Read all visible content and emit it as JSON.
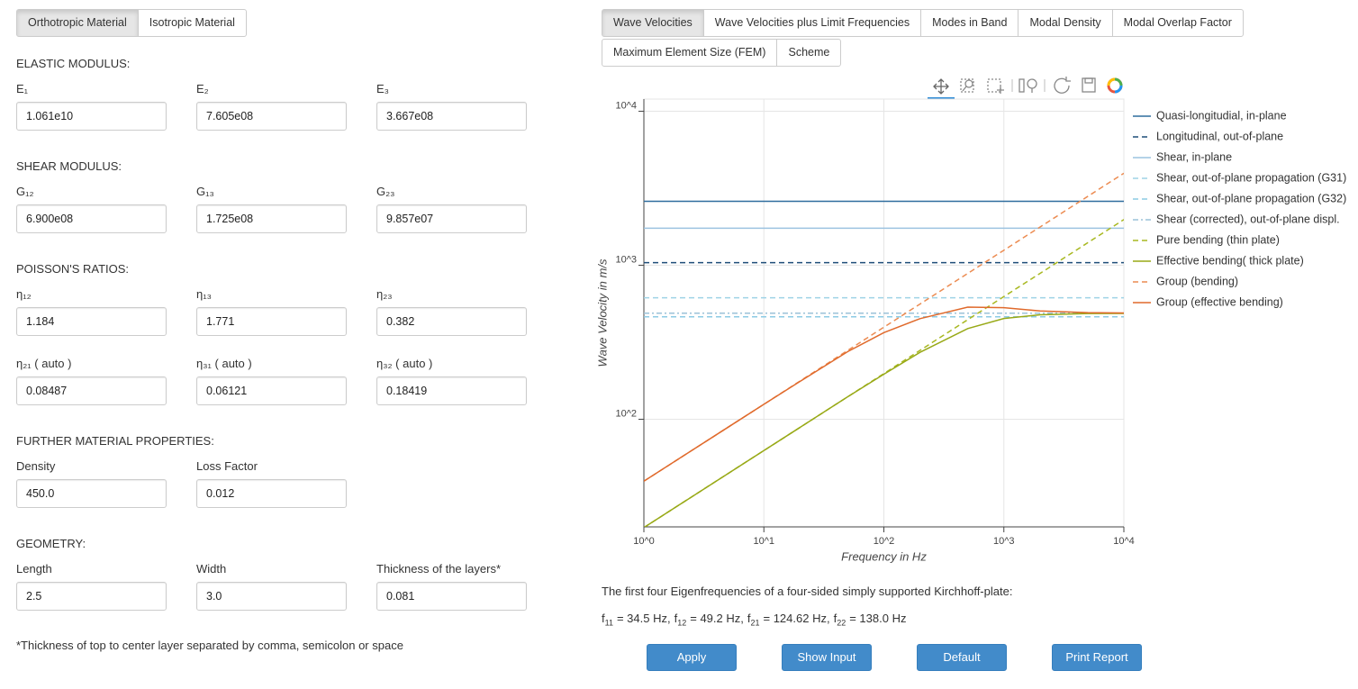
{
  "left_tabs": [
    "Orthotropic Material",
    "Isotropic Material"
  ],
  "sections": [
    {
      "title": "ELASTIC MODULUS:",
      "rows": [
        [
          {
            "label": "E₁",
            "value": "1.061e10"
          },
          {
            "label": "E₂",
            "value": "7.605e08"
          },
          {
            "label": "E₃",
            "value": "3.667e08"
          }
        ]
      ]
    },
    {
      "title": "SHEAR MODULUS:",
      "rows": [
        [
          {
            "label": "G₁₂",
            "value": "6.900e08"
          },
          {
            "label": "G₁₃",
            "value": "1.725e08"
          },
          {
            "label": "G₂₃",
            "value": "9.857e07"
          }
        ]
      ]
    },
    {
      "title": "POISSON'S RATIOS:",
      "rows": [
        [
          {
            "label": "η₁₂",
            "value": "1.184"
          },
          {
            "label": "η₁₃",
            "value": "1.771"
          },
          {
            "label": "η₂₃",
            "value": "0.382"
          }
        ],
        [
          {
            "label": "η₂₁ ( auto )",
            "value": "0.08487"
          },
          {
            "label": "η₃₁ ( auto )",
            "value": "0.06121"
          },
          {
            "label": "η₃₂ ( auto )",
            "value": "0.18419"
          }
        ]
      ]
    },
    {
      "title": "FURTHER MATERIAL PROPERTIES:",
      "rows": [
        [
          {
            "label": "Density",
            "value": "450.0"
          },
          {
            "label": "Loss Factor",
            "value": "0.012"
          }
        ]
      ]
    },
    {
      "title": "GEOMETRY:",
      "rows": [
        [
          {
            "label": "Length",
            "value": "2.5"
          },
          {
            "label": "Width",
            "value": "3.0"
          },
          {
            "label": "Thickness of the layers*",
            "value": "0.081"
          }
        ]
      ]
    }
  ],
  "footnote": "*Thickness of top to center layer separated by comma, semicolon or space",
  "right_tabs": [
    [
      "Wave Velocities",
      "Wave Velocities plus Limit Frequencies",
      "Modes in Band",
      "Modal Density",
      "Modal Overlap Factor"
    ],
    [
      "Maximum Element Size (FEM)",
      "Scheme"
    ]
  ],
  "chart_data": {
    "type": "line",
    "xlabel": "Frequency in Hz",
    "ylabel": "Wave Velocity in m/s",
    "log_x": true,
    "log_y": true,
    "grid": true,
    "legend": "right",
    "x": [
      1,
      2,
      5,
      10,
      20,
      50,
      100,
      200,
      500,
      1000,
      2000,
      5000,
      10000
    ],
    "xlim": [
      1,
      10000
    ],
    "ylim": [
      20,
      12000
    ],
    "xticks": [
      {
        "value": 1,
        "label": "10^0"
      },
      {
        "value": 10,
        "label": "10^1"
      },
      {
        "value": 100,
        "label": "10^2"
      },
      {
        "value": 1000,
        "label": "10^3"
      },
      {
        "value": 10000,
        "label": "10^4"
      }
    ],
    "yticks": [
      {
        "value": 100,
        "label": "10^2"
      },
      {
        "value": 1000,
        "label": "10^3"
      },
      {
        "value": 10000,
        "label": "10^4"
      }
    ],
    "series": [
      {
        "name": "Quasi-longitudial, in-plane",
        "color": "#2f6d9e",
        "dash": "solid",
        "values": [
          2600,
          2600,
          2600,
          2600,
          2600,
          2600,
          2600,
          2600,
          2600,
          2600,
          2600,
          2600,
          2600
        ]
      },
      {
        "name": "Longitudinal, out-of-plane",
        "color": "#1f4e79",
        "dash": "dashed",
        "values": [
          1040,
          1040,
          1040,
          1040,
          1040,
          1040,
          1040,
          1040,
          1040,
          1040,
          1040,
          1040,
          1040
        ]
      },
      {
        "name": "Shear, in-plane",
        "color": "#9cc3e0",
        "dash": "solid",
        "values": [
          1740,
          1740,
          1740,
          1740,
          1740,
          1740,
          1740,
          1740,
          1740,
          1740,
          1740,
          1740,
          1740
        ]
      },
      {
        "name": "Shear, out-of-plane propagation (G31)",
        "color": "#9fd3e6",
        "dash": "dashed",
        "values": [
          615,
          615,
          615,
          615,
          615,
          615,
          615,
          615,
          615,
          615,
          615,
          615,
          615
        ]
      },
      {
        "name": "Shear, out-of-plane propagation (G32)",
        "color": "#8ccbe4",
        "dash": "dashed",
        "values": [
          463,
          463,
          463,
          463,
          463,
          463,
          463,
          463,
          463,
          463,
          463,
          463,
          463
        ]
      },
      {
        "name": "Shear (corrected), out-of-plane displ.",
        "color": "#9bc2d8",
        "dash": "dashdot",
        "values": [
          488,
          488,
          488,
          488,
          488,
          488,
          488,
          488,
          488,
          488,
          488,
          488,
          488
        ]
      },
      {
        "name": "Pure bending (thin plate)",
        "color": "#a8b820",
        "dash": "dashed",
        "values": [
          19.8,
          28,
          44.3,
          62.6,
          88.5,
          140,
          198,
          280,
          443,
          626,
          885,
          1400,
          1980
        ]
      },
      {
        "name": "Effective bending( thick plate)",
        "color": "#98a917",
        "dash": "solid",
        "values": [
          19.8,
          28,
          44.3,
          62.6,
          88.5,
          140,
          196,
          272,
          388,
          451,
          477,
          486,
          487
        ]
      },
      {
        "name": "Group (bending)",
        "color": "#ec8c52",
        "dash": "dashed",
        "values": [
          39.6,
          56,
          88.5,
          125,
          177,
          280,
          396,
          560,
          885,
          1252,
          1771,
          2800,
          3960
        ]
      },
      {
        "name": "Group (effective bending)",
        "color": "#e06a2c",
        "dash": "solid",
        "values": [
          39.6,
          56,
          88.5,
          125,
          176,
          275,
          365,
          450,
          535,
          530,
          505,
          492,
          490
        ]
      }
    ]
  },
  "eigen_intro": "The first four Eigenfrequencies of a four-sided simply supported Kirchhoff-plate:",
  "eigenfrequencies": [
    {
      "symbol": "f",
      "index": "11",
      "text": "= 34.5 Hz,"
    },
    {
      "symbol": "f",
      "index": "12",
      "text": "= 49.2 Hz,"
    },
    {
      "symbol": "f",
      "index": "21",
      "text": "= 124.62 Hz,"
    },
    {
      "symbol": "f",
      "index": "22",
      "text": "= 138.0 Hz"
    }
  ],
  "buttons": [
    "Apply",
    "Show Input",
    "Default",
    "Print Report"
  ]
}
